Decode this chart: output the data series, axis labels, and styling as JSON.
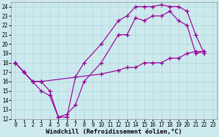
{
  "xlabel": "Windchill (Refroidissement éolien,°C)",
  "background_color": "#cce9ee",
  "grid_color": "#b0d8d8",
  "line_color": "#990099",
  "xlim": [
    -0.5,
    23.5
  ],
  "ylim": [
    12,
    24.5
  ],
  "xticks": [
    0,
    1,
    2,
    3,
    4,
    5,
    6,
    7,
    8,
    9,
    10,
    11,
    12,
    13,
    14,
    15,
    16,
    17,
    18,
    19,
    20,
    21,
    22,
    23
  ],
  "yticks": [
    12,
    13,
    14,
    15,
    16,
    17,
    18,
    19,
    20,
    21,
    22,
    23,
    24
  ],
  "line1_x": [
    0,
    1,
    2,
    3,
    4,
    5,
    6,
    7,
    8,
    10,
    12,
    13,
    14,
    15,
    16,
    17,
    18,
    19,
    20,
    21,
    22
  ],
  "line1_y": [
    18,
    17,
    16,
    15,
    14.5,
    12.2,
    12.5,
    13.5,
    16,
    18,
    21,
    21,
    22.8,
    22.5,
    23,
    23,
    23.5,
    22.5,
    22,
    19,
    19.2
  ],
  "line2_x": [
    0,
    1,
    2,
    3,
    4,
    5,
    6,
    7,
    8,
    10,
    12,
    13,
    14,
    15,
    16,
    17,
    18,
    19,
    20,
    21,
    22
  ],
  "line2_y": [
    18,
    17,
    16,
    16,
    15,
    12.2,
    12.2,
    16.5,
    18,
    20,
    22.5,
    23,
    24,
    24,
    24,
    24.2,
    24,
    24,
    23.5,
    21,
    19
  ],
  "line3_x": [
    0,
    1,
    2,
    3,
    10,
    12,
    13,
    14,
    15,
    16,
    17,
    18,
    19,
    20,
    21,
    22
  ],
  "line3_y": [
    18,
    17,
    16,
    16,
    16.8,
    17.2,
    17.5,
    17.5,
    18,
    18,
    18,
    18.5,
    18.5,
    19,
    19.2,
    19.2
  ],
  "marker": "+",
  "markersize": 4,
  "markeredgewidth": 1.0,
  "linewidth": 0.9,
  "tick_fontsize": 5.5,
  "label_fontsize": 6.5
}
